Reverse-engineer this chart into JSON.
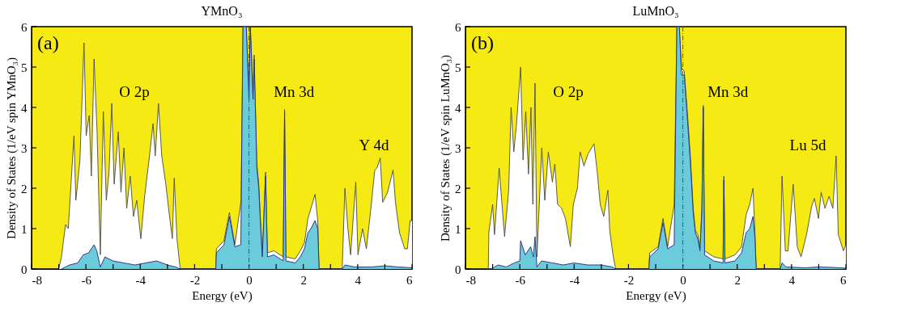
{
  "chart_data": [
    {
      "type": "area",
      "title": "YMnO₃",
      "xlabel": "Energy (eV)",
      "ylabel": "Density of States (1/eV spin YMnO₃)",
      "xlim": [
        -8,
        6
      ],
      "xticks": [
        -8,
        {
          "value": -7,
          "label": null
        },
        -6,
        {
          "value": -5,
          "label": null
        },
        -4,
        {
          "value": -3,
          "label": null
        },
        -2,
        {
          "value": -1,
          "label": null
        },
        0,
        {
          "value": 1,
          "label": null
        },
        2,
        {
          "value": 3,
          "label": null
        },
        4,
        {
          "value": 5,
          "label": null
        },
        6
      ],
      "ylim": [
        0,
        6
      ],
      "yticks": [
        0,
        1,
        2,
        3,
        4,
        5,
        6
      ],
      "grid": false,
      "ref_lines": [
        {
          "axis": "x",
          "value": 0,
          "label": null,
          "color": "#555555",
          "line_style": "dashdot"
        }
      ],
      "annotations": [
        "(a)",
        "O 2p",
        "Mn 3d",
        "Y 4d"
      ],
      "series": [
        {
          "color": "#4a4a4a",
          "x": [
            -7.0,
            -6.9,
            -6.75,
            -6.65,
            -6.44,
            -6.37,
            -6.22,
            -6.07,
            -5.99,
            -5.88,
            -5.8,
            -5.7,
            -5.59,
            -5.47,
            -5.36,
            -5.25,
            -5.15,
            -5.05,
            -4.96,
            -4.81,
            -4.71,
            -4.6,
            -4.5,
            -4.37,
            -4.25,
            -4.13,
            -3.98,
            -3.84,
            -3.66,
            -3.53,
            -3.45,
            -3.33,
            -3.21,
            -3.06,
            -2.94,
            -2.82,
            -2.75,
            -2.65,
            -2.53,
            -1.22,
            -1.2,
            -0.92,
            -0.72,
            -0.52,
            -0.29,
            -0.22,
            -0.1,
            0.0,
            0.05,
            0.15,
            0.19,
            0.29,
            0.36,
            0.44,
            0.49,
            0.61,
            0.68,
            0.92,
            1.26,
            1.31,
            1.36,
            1.7,
            1.89,
            2.04,
            2.17,
            2.28,
            2.43,
            2.53,
            2.58,
            3.43,
            3.53,
            3.64,
            3.74,
            3.93,
            4.01,
            4.18,
            4.32,
            4.47,
            4.63,
            4.71,
            4.83,
            4.92,
            5.1,
            5.3,
            5.39,
            5.54,
            5.73,
            5.83,
            5.93,
            6.0
          ],
          "values": [
            0,
            0.3,
            1.1,
            1.0,
            3.3,
            1.7,
            2.7,
            5.6,
            3.3,
            3.8,
            2.3,
            5.2,
            3.4,
            0.35,
            3.9,
            1.7,
            2.4,
            4.1,
            2.1,
            3.4,
            1.9,
            3.0,
            1.5,
            2.3,
            1.3,
            1.7,
            0.75,
            1.8,
            2.8,
            3.6,
            2.8,
            4.1,
            2.8,
            2.1,
            1.4,
            0.75,
            2.25,
            0.75,
            0,
            0,
            0.5,
            0.7,
            1.4,
            0.6,
            1.7,
            6,
            6,
            4.3,
            6,
            4.3,
            5.3,
            2.6,
            2.1,
            1.0,
            0.35,
            2.4,
            0.4,
            0.45,
            0.3,
            3.95,
            0.3,
            0.25,
            0.45,
            0.65,
            1.25,
            1.5,
            1.85,
            1.2,
            0,
            0,
            2.0,
            1.0,
            0.35,
            2.15,
            0.35,
            1.0,
            0.5,
            1.4,
            2.45,
            2.5,
            2.75,
            1.65,
            1.9,
            2.45,
            1.65,
            0.9,
            0.5,
            0.5,
            1.2,
            1.2
          ]
        },
        {
          "color": "#1f2a7a",
          "x": [
            -6.9,
            -6.6,
            -6.3,
            -6.1,
            -5.9,
            -5.7,
            -5.6,
            -5.47,
            -5.3,
            -5.0,
            -4.6,
            -4.2,
            -3.8,
            -3.4,
            -3.0,
            -2.7,
            -2.53,
            -1.22,
            -1.2,
            -0.92,
            -0.72,
            -0.52,
            -0.3,
            -0.22,
            -0.1,
            0.0,
            0.05,
            0.15,
            0.19,
            0.29,
            0.36,
            0.44,
            0.49,
            0.61,
            0.68,
            0.92,
            1.26,
            1.31,
            1.36,
            1.7,
            1.89,
            2.04,
            2.17,
            2.28,
            2.43,
            2.53,
            2.58,
            3.43,
            3.53,
            3.9,
            4.5,
            5.0,
            5.5,
            6.0
          ],
          "values": [
            0,
            0.1,
            0.15,
            0.35,
            0.4,
            0.6,
            0.45,
            0.05,
            0.3,
            0.2,
            0.15,
            0.1,
            0.15,
            0.2,
            0.1,
            0.05,
            0,
            0,
            0.4,
            0.6,
            1.3,
            0.55,
            0.6,
            6,
            6,
            4.2,
            6,
            4.2,
            5.2,
            2.5,
            2.0,
            0.9,
            0.3,
            2.3,
            0.3,
            0.35,
            0.2,
            3.9,
            0.2,
            0.15,
            0.3,
            0.5,
            0.9,
            1.0,
            1.2,
            1.0,
            0,
            0,
            0.1,
            0.05,
            0.05,
            0.08,
            0.05,
            0.03
          ]
        }
      ]
    },
    {
      "type": "area",
      "title": "LuMnO₃",
      "xlabel": "Energy (eV)",
      "ylabel": "Density of States (1/eV spin LuMnO₃)",
      "xlim": [
        -8,
        6
      ],
      "xticks": [
        -8,
        {
          "value": -7,
          "label": null
        },
        -6,
        {
          "value": -5,
          "label": null
        },
        -4,
        {
          "value": -3,
          "label": null
        },
        -2,
        {
          "value": -1,
          "label": null
        },
        0,
        {
          "value": 1,
          "label": null
        },
        2,
        {
          "value": 3,
          "label": null
        },
        4,
        {
          "value": 5,
          "label": null
        },
        6
      ],
      "ylim": [
        0,
        6
      ],
      "yticks": [
        0,
        1,
        2,
        3,
        4,
        5,
        6
      ],
      "grid": false,
      "ref_lines": [
        {
          "axis": "x",
          "value": 0,
          "label": null,
          "color": "#555555",
          "line_style": "dashdot"
        }
      ],
      "annotations": [
        "(b)",
        "O 2p",
        "Mn 3d",
        "Lu 5d"
      ],
      "series": [
        {
          "color": "#4a4a4a",
          "x": [
            -7.16,
            -7.14,
            -7.0,
            -6.93,
            -6.76,
            -6.56,
            -6.41,
            -6.32,
            -6.22,
            -6.12,
            -5.97,
            -5.88,
            -5.78,
            -5.68,
            -5.59,
            -5.52,
            -5.44,
            -5.37,
            -5.19,
            -5.08,
            -4.95,
            -4.8,
            -4.71,
            -4.61,
            -4.46,
            -4.32,
            -4.14,
            -4.03,
            -3.88,
            -3.78,
            -3.64,
            -3.49,
            -3.27,
            -3.15,
            -3.04,
            -2.91,
            -2.76,
            -2.69,
            -2.56,
            -2.47,
            -1.25,
            -1.22,
            -0.91,
            -0.73,
            -0.56,
            -0.32,
            -0.22,
            -0.13,
            -0.05,
            0.05,
            0.17,
            0.28,
            0.38,
            0.46,
            0.55,
            0.63,
            0.7,
            0.75,
            0.8,
            1.14,
            1.48,
            1.51,
            1.55,
            1.92,
            2.16,
            2.33,
            2.46,
            2.58,
            2.65,
            2.7,
            3.58,
            3.65,
            3.77,
            3.87,
            4.06,
            4.21,
            4.35,
            4.55,
            4.74,
            4.84,
            4.99,
            5.09,
            5.23,
            5.38,
            5.52,
            5.64,
            5.72,
            5.91,
            6.0
          ],
          "values": [
            0,
            0.9,
            1.6,
            0.85,
            2.5,
            0.8,
            1.95,
            4.0,
            2.9,
            3.6,
            5.0,
            2.7,
            3.9,
            2.35,
            4.0,
            1.6,
            4.6,
            0.3,
            3.0,
            1.7,
            2.9,
            2.15,
            2.6,
            1.6,
            1.5,
            1.25,
            0.55,
            1.6,
            2.0,
            2.9,
            2.55,
            2.85,
            3.1,
            2.4,
            1.6,
            1.3,
            1.95,
            0.95,
            0.3,
            0,
            0,
            0.4,
            0.55,
            1.25,
            0.55,
            1.6,
            6,
            6,
            4.95,
            4.9,
            3.85,
            2.75,
            1.5,
            0.95,
            0.85,
            0.5,
            1.5,
            4.05,
            0.45,
            0.3,
            0.25,
            2.3,
            0.25,
            0.35,
            0.55,
            1.35,
            1.6,
            2.0,
            0.95,
            0,
            0,
            2.3,
            0.45,
            0.45,
            2.1,
            0.55,
            0.3,
            0.85,
            1.55,
            1.75,
            1.25,
            1.9,
            1.5,
            1.8,
            1.5,
            2.8,
            0.85,
            0.45,
            0.6
          ]
        },
        {
          "color": "#1f2a7a",
          "x": [
            -7.2,
            -7.0,
            -6.8,
            -6.5,
            -6.2,
            -6.0,
            -5.97,
            -5.8,
            -5.6,
            -5.5,
            -5.44,
            -5.37,
            -5.2,
            -4.8,
            -4.4,
            -4.0,
            -3.5,
            -3.0,
            -2.6,
            -2.47,
            -1.25,
            -1.22,
            -0.91,
            -0.73,
            -0.56,
            -0.32,
            -0.22,
            -0.13,
            -0.05,
            0.05,
            0.17,
            0.28,
            0.38,
            0.46,
            0.55,
            0.63,
            0.7,
            0.75,
            0.8,
            1.14,
            1.48,
            1.51,
            1.55,
            1.92,
            2.16,
            2.33,
            2.46,
            2.58,
            2.65,
            2.7,
            3.58,
            3.65,
            3.8,
            4.5,
            5.0,
            5.5,
            6.0
          ],
          "values": [
            0,
            0.02,
            0.1,
            0.05,
            0.15,
            0.2,
            0.7,
            0.35,
            0.55,
            0.3,
            0.8,
            0.05,
            0.2,
            0.15,
            0.1,
            0.15,
            0.1,
            0.1,
            0.05,
            0,
            0,
            0.3,
            0.5,
            1.15,
            0.5,
            0.6,
            6,
            6,
            4.8,
            4.8,
            3.7,
            2.6,
            1.4,
            0.9,
            0.75,
            0.45,
            1.4,
            4.0,
            0.35,
            0.2,
            0.15,
            2.2,
            0.15,
            0.2,
            0.4,
            0.9,
            1.0,
            1.3,
            0.8,
            0,
            0,
            0.15,
            0.05,
            0.03,
            0.05,
            0.04,
            0.02
          ]
        }
      ]
    }
  ]
}
